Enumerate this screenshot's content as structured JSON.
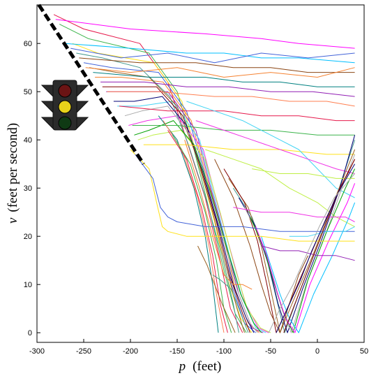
{
  "chart_data": {
    "type": "line",
    "title": "",
    "xlabel_symbol": "p",
    "xlabel_unit": "(feet)",
    "ylabel_symbol": "v",
    "ylabel_unit": "(feet per second)",
    "xlim": [
      -300,
      50
    ],
    "ylim": [
      -2,
      68
    ],
    "x_ticks": [
      "-300",
      "-250",
      "-200",
      "-150",
      "-100",
      "-50",
      "0",
      "50"
    ],
    "y_ticks": [
      "0",
      "10",
      "20",
      "30",
      "40",
      "50",
      "60"
    ],
    "grid": false,
    "legend": "none",
    "boundary_line": {
      "style": "dashed",
      "color": "#000000",
      "x": [
        -298,
        -186
      ],
      "y": [
        68,
        35
      ]
    },
    "traffic_light": {
      "icon": "traffic-light-icon",
      "lamps": [
        "#6b1414",
        "#e8d21a",
        "#0f3a14"
      ]
    },
    "colors": [
      "#e6194b",
      "#3cb44b",
      "#ffe119",
      "#4363d8",
      "#f58231",
      "#911eb4",
      "#42d4f4",
      "#f032e6",
      "#bfef45",
      "#469990",
      "#9a6324",
      "#800000",
      "#000075",
      "#a9a9a9",
      "#00a000",
      "#ff00ff",
      "#00bfff",
      "#8b4513",
      "#008080",
      "#ff7f50"
    ],
    "series": [
      {
        "x": [
          -282,
          -250,
          -190,
          -160,
          -140,
          -120,
          -104,
          -93,
          -80
        ],
        "y": [
          66,
          63,
          60,
          52,
          40,
          28,
          15,
          5,
          0
        ]
      },
      {
        "x": [
          -276,
          -245,
          -180,
          -150,
          -132,
          -115,
          -100,
          -88,
          -76
        ],
        "y": [
          64,
          61,
          58,
          50,
          38,
          25,
          13,
          4,
          0
        ]
      },
      {
        "x": [
          -262,
          -235,
          -175,
          -145,
          -128,
          -110,
          -96,
          -82,
          -70
        ],
        "y": [
          60,
          58,
          56,
          48,
          36,
          23,
          11,
          3,
          0
        ]
      },
      {
        "x": [
          -250,
          -220,
          -170,
          -140,
          -122,
          -105,
          -92,
          -78,
          -66
        ],
        "y": [
          56,
          55,
          54,
          46,
          34,
          21,
          10,
          2,
          0
        ]
      },
      {
        "x": [
          -238,
          -210,
          -165,
          -135,
          -118,
          -100,
          -88,
          -74,
          -62
        ],
        "y": [
          53,
          53,
          52,
          44,
          32,
          20,
          9,
          2,
          0
        ]
      },
      {
        "x": [
          -226,
          -200,
          -160,
          -130,
          -114,
          -97,
          -84,
          -70,
          -58
        ],
        "y": [
          50,
          50,
          50,
          42,
          30,
          18,
          8,
          1,
          0
        ]
      },
      {
        "x": [
          -214,
          -190,
          -155,
          -126,
          -110,
          -94,
          -80,
          -66,
          -55
        ],
        "y": [
          47,
          47,
          48,
          40,
          28,
          16,
          7,
          1,
          0
        ]
      },
      {
        "x": [
          -202,
          -182,
          -150,
          -122,
          -106,
          -90,
          -77,
          -63,
          -52
        ],
        "y": [
          43,
          44,
          45,
          38,
          26,
          15,
          6,
          1,
          0
        ]
      },
      {
        "x": [
          -192,
          -176,
          -146,
          -120,
          -104,
          -89,
          -75,
          -61,
          -50
        ],
        "y": [
          40,
          41,
          42,
          36,
          25,
          14,
          5,
          1,
          0
        ]
      },
      {
        "x": [
          -258,
          -230,
          -190,
          -158,
          -138,
          -118,
          -102,
          -90,
          -84
        ],
        "y": [
          58,
          57,
          55,
          49,
          39,
          27,
          16,
          6,
          0
        ]
      },
      {
        "x": [
          -244,
          -215,
          -180,
          -150,
          -130,
          -112,
          -98,
          -86,
          -78
        ],
        "y": [
          55,
          54,
          53,
          47,
          37,
          25,
          14,
          5,
          0
        ]
      },
      {
        "x": [
          -230,
          -205,
          -172,
          -144,
          -126,
          -108,
          -94,
          -80,
          -72
        ],
        "y": [
          51,
          51,
          51,
          45,
          35,
          23,
          12,
          4,
          0
        ]
      },
      {
        "x": [
          -218,
          -196,
          -166,
          -140,
          -122,
          -104,
          -90,
          -76,
          -68
        ],
        "y": [
          48,
          48,
          49,
          43,
          33,
          21,
          10,
          3,
          0
        ]
      },
      {
        "x": [
          -206,
          -188,
          -160,
          -136,
          -118,
          -100,
          -86,
          -72,
          -64
        ],
        "y": [
          45,
          46,
          47,
          41,
          31,
          19,
          9,
          2,
          0
        ]
      },
      {
        "x": [
          -196,
          -180,
          -154,
          -132,
          -114,
          -96,
          -82,
          -68,
          -60
        ],
        "y": [
          41,
          42,
          44,
          39,
          29,
          17,
          8,
          2,
          0
        ]
      },
      {
        "x": [
          -280,
          -200,
          -120,
          -60,
          -20,
          40
        ],
        "y": [
          65,
          63,
          62,
          61,
          60,
          59
        ]
      },
      {
        "x": [
          -270,
          -200,
          -140,
          -100,
          -60,
          -20,
          40
        ],
        "y": [
          60,
          59,
          58,
          58,
          57,
          57,
          56
        ]
      },
      {
        "x": [
          -255,
          -190,
          -130,
          -90,
          -50,
          -10,
          40
        ],
        "y": [
          57,
          56,
          56,
          55,
          55,
          54,
          54
        ]
      },
      {
        "x": [
          -240,
          -180,
          -120,
          -80,
          -40,
          0,
          40
        ],
        "y": [
          54,
          53,
          53,
          52,
          52,
          51,
          51
        ]
      },
      {
        "x": [
          -225,
          -170,
          -110,
          -70,
          -30,
          10,
          40
        ],
        "y": [
          50,
          50,
          49,
          49,
          48,
          48,
          47
        ]
      },
      {
        "x": [
          -212,
          -160,
          -100,
          -60,
          -20,
          20,
          40
        ],
        "y": [
          47,
          46,
          46,
          45,
          45,
          44,
          44
        ]
      },
      {
        "x": [
          -198,
          -150,
          -100,
          -50,
          0,
          40
        ],
        "y": [
          43,
          43,
          42,
          42,
          41,
          41
        ]
      },
      {
        "x": [
          -186,
          -140,
          -90,
          -40,
          10,
          40
        ],
        "y": [
          39,
          39,
          38,
          38,
          37,
          37
        ]
      },
      {
        "x": [
          -264,
          -210,
          -160,
          -110,
          -60,
          -10,
          40
        ],
        "y": [
          59,
          57,
          58,
          56,
          58,
          57,
          58
        ]
      },
      {
        "x": [
          -248,
          -200,
          -150,
          -100,
          -50,
          0,
          40
        ],
        "y": [
          55,
          54,
          55,
          53,
          54,
          53,
          55
        ]
      },
      {
        "x": [
          -232,
          -185,
          -140,
          -95,
          -50,
          -5,
          40
        ],
        "y": [
          52,
          52,
          51,
          51,
          50,
          50,
          49
        ]
      },
      {
        "x": [
          -140,
          -110,
          -80,
          -60,
          -40,
          -20,
          0,
          20,
          40
        ],
        "y": [
          48,
          46,
          44,
          42,
          40,
          38,
          34,
          30,
          28
        ]
      },
      {
        "x": [
          -130,
          -100,
          -70,
          -40,
          -10,
          20,
          40
        ],
        "y": [
          44,
          42,
          40,
          38,
          36,
          34,
          33
        ]
      },
      {
        "x": [
          -120,
          -90,
          -60,
          -30,
          0,
          20,
          40
        ],
        "y": [
          38,
          36,
          34,
          30,
          27,
          24,
          22
        ]
      },
      {
        "x": [
          -90,
          -70,
          -55,
          -45,
          -35,
          -20,
          0,
          20,
          40
        ],
        "y": [
          30,
          24,
          16,
          8,
          0,
          8,
          18,
          28,
          40
        ]
      },
      {
        "x": [
          -95,
          -74,
          -60,
          -50,
          -40,
          -25,
          -5,
          15,
          40
        ],
        "y": [
          32,
          26,
          18,
          9,
          0,
          7,
          16,
          26,
          38
        ]
      },
      {
        "x": [
          -100,
          -78,
          -64,
          -54,
          -44,
          -30,
          -10,
          10,
          40
        ],
        "y": [
          34,
          27,
          19,
          10,
          0,
          6,
          15,
          24,
          36
        ]
      },
      {
        "x": [
          -84,
          -66,
          -52,
          -42,
          -32,
          -16,
          4,
          24,
          40
        ],
        "y": [
          28,
          22,
          14,
          6,
          0,
          9,
          19,
          30,
          41
        ]
      },
      {
        "x": [
          -78,
          -62,
          -48,
          -38,
          -28,
          -12,
          8,
          28,
          40
        ],
        "y": [
          26,
          20,
          12,
          5,
          0,
          10,
          20,
          31,
          37
        ]
      },
      {
        "x": [
          -72,
          -58,
          -46,
          -36,
          -26,
          -10,
          10,
          30,
          40
        ],
        "y": [
          24,
          18,
          10,
          4,
          0,
          11,
          21,
          30,
          34
        ]
      },
      {
        "x": [
          -66,
          -54,
          -44,
          -34,
          -24,
          -8,
          12,
          32,
          40
        ],
        "y": [
          22,
          16,
          9,
          3,
          0,
          10,
          19,
          27,
          31
        ]
      },
      {
        "x": [
          -60,
          -50,
          -40,
          -30,
          -20,
          -4,
          16,
          34,
          40
        ],
        "y": [
          20,
          14,
          8,
          3,
          0,
          8,
          16,
          24,
          27
        ]
      },
      {
        "x": [
          -110,
          -90,
          -72,
          -60,
          -50,
          -40,
          -30,
          -20,
          -10
        ],
        "y": [
          36,
          28,
          18,
          10,
          4,
          0,
          6,
          12,
          16
        ]
      },
      {
        "x": [
          -170,
          -150,
          -132,
          -120,
          -112,
          -106
        ],
        "y": [
          45,
          40,
          30,
          20,
          10,
          0
        ]
      },
      {
        "x": [
          -165,
          -145,
          -128,
          -116,
          -108,
          -100
        ],
        "y": [
          44,
          38,
          28,
          18,
          8,
          0
        ]
      },
      {
        "x": [
          -160,
          -140,
          -124,
          -112,
          -104,
          -96
        ],
        "y": [
          42,
          36,
          26,
          16,
          6,
          0
        ]
      },
      {
        "x": [
          -155,
          -136,
          -120,
          -108,
          -100,
          -92
        ],
        "y": [
          41,
          35,
          25,
          15,
          5,
          0
        ]
      },
      {
        "x": [
          -200,
          -180,
          -172,
          -166,
          -160,
          -140,
          -100,
          -60,
          -20,
          40
        ],
        "y": [
          38,
          34,
          27,
          22,
          21,
          20,
          20,
          20,
          19,
          19
        ]
      },
      {
        "x": [
          -195,
          -176,
          -168,
          -160,
          -150,
          -120,
          -80,
          -40,
          0,
          40
        ],
        "y": [
          37,
          32,
          26,
          24,
          23,
          22,
          22,
          21,
          21,
          21
        ]
      },
      {
        "x": [
          -142,
          -126,
          -112,
          -100,
          -90,
          -80,
          -70
        ],
        "y": [
          40,
          30,
          20,
          12,
          10,
          10,
          9
        ]
      },
      {
        "x": [
          -60,
          -40,
          -20,
          0,
          20,
          40
        ],
        "y": [
          18,
          17,
          17,
          16,
          16,
          15
        ]
      },
      {
        "x": [
          -30,
          -10,
          10,
          30,
          40
        ],
        "y": [
          20,
          20,
          21,
          21,
          22
        ]
      },
      {
        "x": [
          -90,
          -60,
          -30,
          0,
          30,
          40
        ],
        "y": [
          26,
          25,
          25,
          24,
          24,
          23
        ]
      },
      {
        "x": [
          -70,
          -40,
          -10,
          20,
          40
        ],
        "y": [
          34,
          33,
          33,
          32,
          32
        ]
      },
      {
        "x": [
          -112,
          -104,
          -98,
          -92,
          -86,
          -80,
          -74
        ],
        "y": [
          12,
          11,
          10,
          9,
          6,
          3,
          0
        ]
      },
      {
        "x": [
          -128,
          -118,
          -110,
          -102,
          -95,
          -88
        ],
        "y": [
          18,
          14,
          10,
          6,
          3,
          0
        ]
      },
      {
        "x": [
          -36,
          -24,
          -12,
          0,
          12,
          24,
          40
        ],
        "y": [
          0,
          6,
          12,
          18,
          24,
          30,
          36
        ]
      },
      {
        "x": [
          -44,
          -32,
          -18,
          -6,
          8,
          22,
          40
        ],
        "y": [
          0,
          5,
          11,
          17,
          23,
          29,
          35
        ]
      },
      {
        "x": [
          -52,
          -40,
          -26,
          -12,
          2,
          18,
          40
        ],
        "y": [
          0,
          5,
          10,
          16,
          22,
          28,
          33
        ]
      }
    ]
  }
}
